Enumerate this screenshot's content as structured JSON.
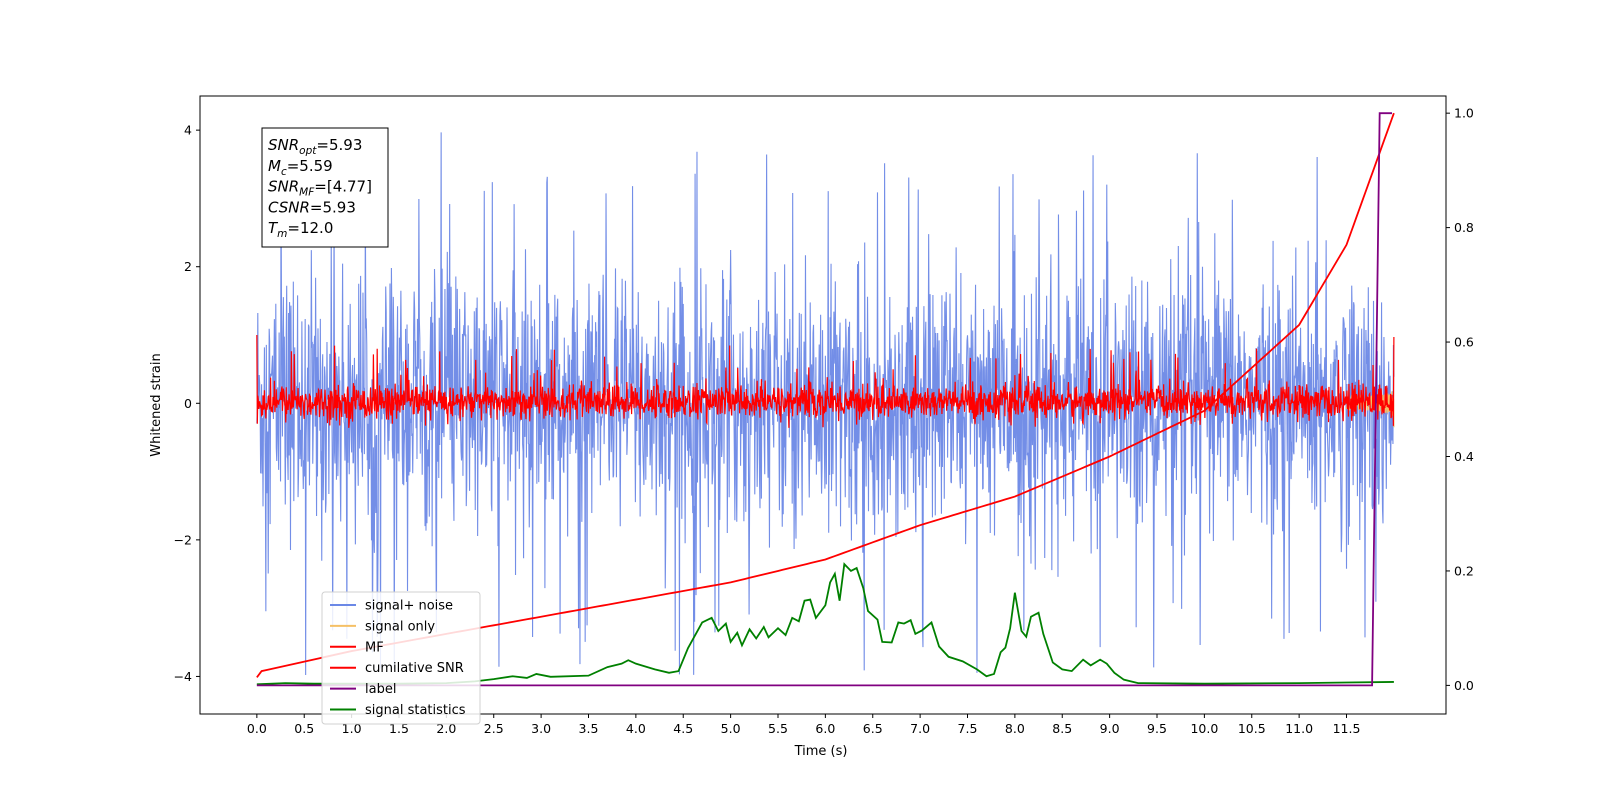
{
  "chart_data": {
    "type": "line",
    "xlabel": "Time (s)",
    "ylabel": "Whitened strain",
    "xlim": [
      -0.6,
      12.55
    ],
    "ylim_left": [
      -4.55,
      4.5
    ],
    "ylim_right": [
      -0.05,
      1.03
    ],
    "x_ticks": [
      "0.0",
      "0.5",
      "1.0",
      "1.5",
      "2.0",
      "2.5",
      "3.0",
      "3.5",
      "4.0",
      "4.5",
      "5.0",
      "5.5",
      "6.0",
      "6.5",
      "7.0",
      "7.5",
      "8.0",
      "8.5",
      "9.0",
      "9.5",
      "10.0",
      "10.5",
      "11.0",
      "11.5"
    ],
    "y_ticks_left": [
      "4",
      "2",
      "0",
      "−2",
      "−4"
    ],
    "y_ticks_right": [
      "1.0",
      "0.8",
      "0.6",
      "0.4",
      "0.2",
      "0.0"
    ],
    "annotation": {
      "lines": [
        {
          "main": "SNR",
          "sub": "opt",
          "value": "=5.93"
        },
        {
          "main": "M",
          "sub": "c",
          "value": "=5.59"
        },
        {
          "main": "SNR",
          "sub": "MF",
          "value": "=[4.77]"
        },
        {
          "main": "CSNR",
          "sub": "",
          "value": "=5.93"
        },
        {
          "main": "T",
          "sub": "m",
          "value": "=12.0"
        }
      ]
    },
    "legend": {
      "position": "lower-left",
      "entries": [
        {
          "label": "signal+ noise",
          "color": "#6b88e6"
        },
        {
          "label": "signal only",
          "color": "#f5c066"
        },
        {
          "label": "MF",
          "color": "#ff0000"
        },
        {
          "label": "cumilative SNR",
          "color": "#ff0000"
        },
        {
          "label": "label",
          "color": "#800080"
        },
        {
          "label": "signal statistics",
          "color": "#008000"
        }
      ]
    },
    "series": [
      {
        "name": "signal+ noise",
        "axis": "left",
        "kind": "noise",
        "t_start": 0.0,
        "t_end": 12.0,
        "amplitude_range": [
          -4.05,
          4.1
        ]
      },
      {
        "name": "signal only",
        "axis": "left",
        "kind": "chirp",
        "t_start": 11.5,
        "t_end": 12.0,
        "amplitude_range": [
          -0.6,
          0.5
        ]
      },
      {
        "name": "MF",
        "axis": "left",
        "kind": "noise",
        "t_start": 0.0,
        "t_end": 12.0,
        "amplitude_range": [
          -0.35,
          1.0
        ]
      },
      {
        "name": "cumilative SNR",
        "axis": "right",
        "points": [
          [
            0.0,
            0.014
          ],
          [
            0.05,
            0.025
          ],
          [
            1.0,
            0.06
          ],
          [
            2.0,
            0.09
          ],
          [
            3.0,
            0.12
          ],
          [
            4.0,
            0.15
          ],
          [
            5.0,
            0.18
          ],
          [
            6.0,
            0.22
          ],
          [
            7.0,
            0.28
          ],
          [
            8.0,
            0.33
          ],
          [
            9.0,
            0.4
          ],
          [
            10.0,
            0.48
          ],
          [
            11.0,
            0.63
          ],
          [
            11.5,
            0.77
          ],
          [
            12.0,
            1.0
          ]
        ]
      },
      {
        "name": "label",
        "axis": "right",
        "points": [
          [
            0.0,
            0.0
          ],
          [
            11.77,
            0.0
          ],
          [
            11.85,
            1.0
          ],
          [
            11.98,
            1.0
          ]
        ]
      },
      {
        "name": "signal statistics",
        "axis": "right",
        "points": [
          [
            0.0,
            0.002
          ],
          [
            0.3,
            0.004
          ],
          [
            0.6,
            0.003
          ],
          [
            1.0,
            0.003
          ],
          [
            1.5,
            0.003
          ],
          [
            2.0,
            0.004
          ],
          [
            2.3,
            0.007
          ],
          [
            2.5,
            0.011
          ],
          [
            2.7,
            0.016
          ],
          [
            2.85,
            0.013
          ],
          [
            2.95,
            0.02
          ],
          [
            3.1,
            0.015
          ],
          [
            3.5,
            0.017
          ],
          [
            3.7,
            0.032
          ],
          [
            3.85,
            0.038
          ],
          [
            3.92,
            0.044
          ],
          [
            4.0,
            0.038
          ],
          [
            4.2,
            0.028
          ],
          [
            4.35,
            0.022
          ],
          [
            4.45,
            0.025
          ],
          [
            4.55,
            0.065
          ],
          [
            4.7,
            0.11
          ],
          [
            4.8,
            0.118
          ],
          [
            4.87,
            0.095
          ],
          [
            4.95,
            0.108
          ],
          [
            5.0,
            0.076
          ],
          [
            5.07,
            0.092
          ],
          [
            5.12,
            0.07
          ],
          [
            5.2,
            0.098
          ],
          [
            5.27,
            0.082
          ],
          [
            5.35,
            0.102
          ],
          [
            5.4,
            0.084
          ],
          [
            5.5,
            0.1
          ],
          [
            5.58,
            0.088
          ],
          [
            5.65,
            0.118
          ],
          [
            5.72,
            0.112
          ],
          [
            5.78,
            0.148
          ],
          [
            5.84,
            0.15
          ],
          [
            5.9,
            0.118
          ],
          [
            6.0,
            0.14
          ],
          [
            6.05,
            0.18
          ],
          [
            6.1,
            0.195
          ],
          [
            6.15,
            0.148
          ],
          [
            6.2,
            0.212
          ],
          [
            6.27,
            0.2
          ],
          [
            6.33,
            0.205
          ],
          [
            6.4,
            0.17
          ],
          [
            6.45,
            0.13
          ],
          [
            6.55,
            0.115
          ],
          [
            6.6,
            0.076
          ],
          [
            6.7,
            0.075
          ],
          [
            6.77,
            0.11
          ],
          [
            6.83,
            0.108
          ],
          [
            6.9,
            0.114
          ],
          [
            6.95,
            0.09
          ],
          [
            7.02,
            0.096
          ],
          [
            7.12,
            0.11
          ],
          [
            7.2,
            0.068
          ],
          [
            7.3,
            0.05
          ],
          [
            7.45,
            0.042
          ],
          [
            7.6,
            0.028
          ],
          [
            7.7,
            0.016
          ],
          [
            7.78,
            0.02
          ],
          [
            7.85,
            0.058
          ],
          [
            7.9,
            0.066
          ],
          [
            7.95,
            0.1
          ],
          [
            8.0,
            0.162
          ],
          [
            8.07,
            0.095
          ],
          [
            8.12,
            0.085
          ],
          [
            8.17,
            0.12
          ],
          [
            8.25,
            0.127
          ],
          [
            8.3,
            0.09
          ],
          [
            8.4,
            0.04
          ],
          [
            8.5,
            0.028
          ],
          [
            8.6,
            0.025
          ],
          [
            8.72,
            0.045
          ],
          [
            8.8,
            0.035
          ],
          [
            8.9,
            0.045
          ],
          [
            8.97,
            0.038
          ],
          [
            9.05,
            0.022
          ],
          [
            9.15,
            0.01
          ],
          [
            9.3,
            0.004
          ],
          [
            10.0,
            0.003
          ],
          [
            11.0,
            0.004
          ],
          [
            11.5,
            0.005
          ],
          [
            12.0,
            0.006
          ]
        ]
      }
    ]
  }
}
